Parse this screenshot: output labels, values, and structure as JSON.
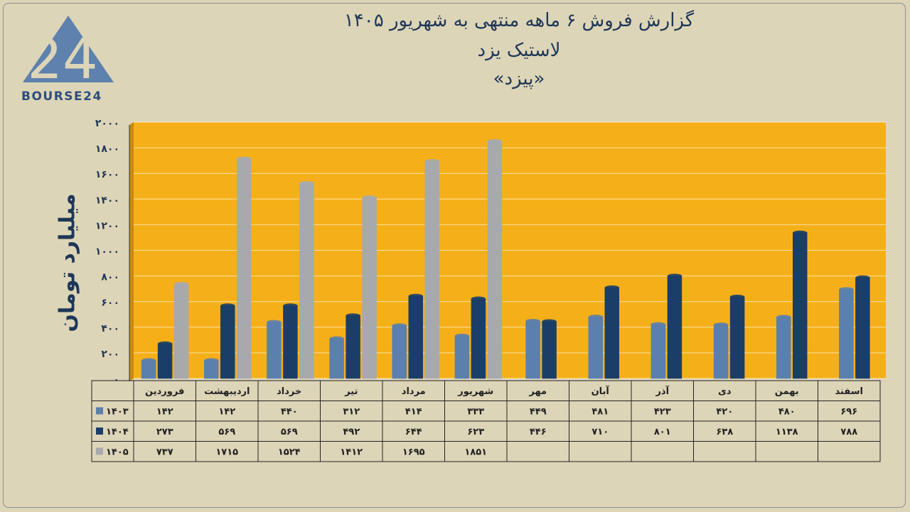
{
  "brand": {
    "logo_text": "BOURSE24"
  },
  "header": {
    "title_line1": "گزارش  فروش ۶ ماهه منتهی به شهریور ۱۴۰۵",
    "title_line2": "لاستیک یزد",
    "title_line3": "«پیزد»"
  },
  "colors": {
    "background": "#ddd5b8",
    "plot_bg": "#f5b019",
    "series_1403": "#5b80ad",
    "series_1404": "#1b3e68",
    "series_1405": "#a7a9ad",
    "text": "#1f3756"
  },
  "chart_data": {
    "type": "bar",
    "title": "گزارش  فروش ۶ ماهه منتهی به شهریور ۱۴۰۵",
    "ylabel": "میلیارد تومان",
    "ylim": [
      0,
      2000
    ],
    "yticks": [
      "۰",
      "۲۰۰",
      "۴۰۰",
      "۶۰۰",
      "۸۰۰",
      "۱۰۰۰",
      "۱۲۰۰",
      "۱۴۰۰",
      "۱۶۰۰",
      "۱۸۰۰",
      "۲۰۰۰"
    ],
    "grid": true,
    "categories": [
      "فروردین",
      "اردیبهشت",
      "خرداد",
      "تیر",
      "مرداد",
      "شهریور",
      "مهر",
      "آبان",
      "آذر",
      "دی",
      "بهمن",
      "اسفند"
    ],
    "series": [
      {
        "name": "۱۴۰۳",
        "values": [
          142,
          142,
          440,
          312,
          414,
          333,
          449,
          481,
          423,
          420,
          480,
          696
        ],
        "labels": [
          "۱۴۲",
          "۱۴۲",
          "۴۴۰",
          "۳۱۲",
          "۴۱۴",
          "۳۳۳",
          "۴۴۹",
          "۴۸۱",
          "۴۲۳",
          "۴۲۰",
          "۴۸۰",
          "۶۹۶"
        ]
      },
      {
        "name": "۱۴۰۴",
        "values": [
          273,
          569,
          569,
          492,
          644,
          623,
          446,
          710,
          801,
          638,
          1138,
          788
        ],
        "labels": [
          "۲۷۳",
          "۵۶۹",
          "۵۶۹",
          "۴۹۲",
          "۶۴۴",
          "۶۲۳",
          "۴۴۶",
          "۷۱۰",
          "۸۰۱",
          "۶۳۸",
          "۱۱۳۸",
          "۷۸۸"
        ]
      },
      {
        "name": "۱۴۰۵",
        "values": [
          737,
          1715,
          1524,
          1412,
          1695,
          1851,
          null,
          null,
          null,
          null,
          null,
          null
        ],
        "labels": [
          "۷۳۷",
          "۱۷۱۵",
          "۱۵۲۴",
          "۱۴۱۲",
          "۱۶۹۵",
          "۱۸۵۱",
          "",
          "",
          "",
          "",
          "",
          ""
        ]
      }
    ],
    "legend": "data-table-left"
  }
}
